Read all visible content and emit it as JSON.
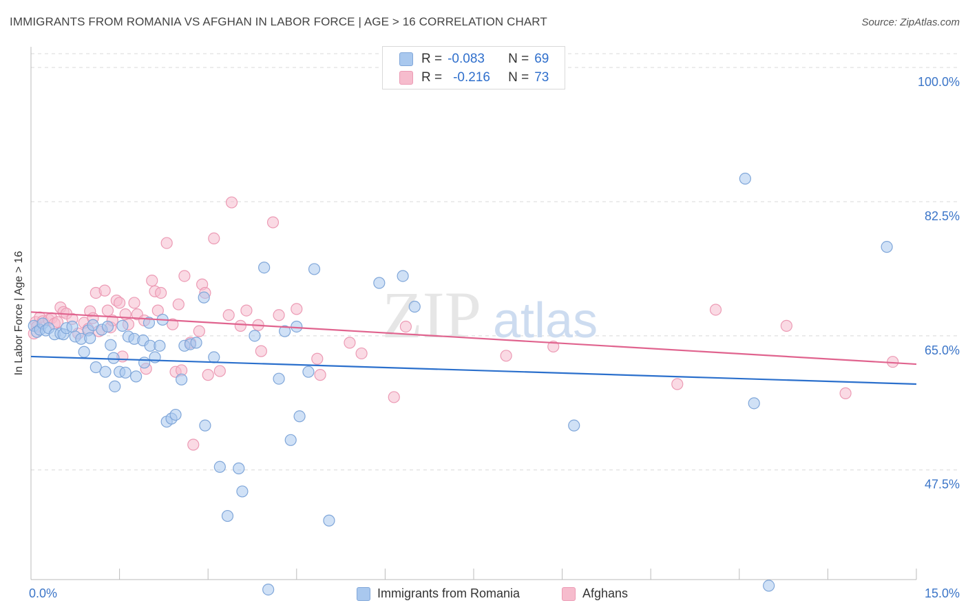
{
  "title": "IMMIGRANTS FROM ROMANIA VS AFGHAN IN LABOR FORCE | AGE > 16 CORRELATION CHART",
  "source": "Source: ZipAtlas.com",
  "watermark": {
    "zip": "ZIP",
    "atlas": "atlas"
  },
  "stats": {
    "romania": {
      "r_label": "R =",
      "r_value": "-0.083",
      "n_label": "N =",
      "n_value": "69"
    },
    "afghan": {
      "r_label": "R =",
      "r_value": "-0.216",
      "n_label": "N =",
      "n_value": "73"
    }
  },
  "legend": {
    "romania": "Immigrants from Romania",
    "afghan": "Afghans"
  },
  "x_tick_labels": {
    "min": "0.0%",
    "max": "15.0%"
  },
  "colors": {
    "romania_fill": "#a9c8ee",
    "romania_stroke": "#7fa6d9",
    "romania_line": "#2a6fcc",
    "afghan_fill": "#f6bccd",
    "afghan_stroke": "#ec9ab4",
    "afghan_line": "#e0638e",
    "tick_label": "#3b75c8",
    "grid": "#d8d8d8"
  },
  "chart_data": {
    "type": "scatter",
    "title": "IMMIGRANTS FROM ROMANIA VS AFGHAN IN LABOR FORCE | AGE > 16 CORRELATION CHART",
    "xlabel": "",
    "ylabel": "In Labor Force | Age > 16",
    "xlim": [
      0,
      15
    ],
    "ylim": [
      33.2,
      101.8
    ],
    "y_ticks": [
      47.5,
      65.0,
      82.5,
      100.0
    ],
    "y_tick_labels": [
      "47.5%",
      "65.0%",
      "82.5%",
      "100.0%"
    ],
    "grid": true,
    "series": [
      {
        "name": "Immigrants from Romania",
        "r": -0.083,
        "n": 69,
        "trend": {
          "x": [
            0,
            15
          ],
          "y": [
            62.3,
            58.7
          ]
        },
        "points": [
          [
            0.05,
            66.3
          ],
          [
            0.1,
            65.5
          ],
          [
            0.15,
            65.8
          ],
          [
            0.2,
            66.6
          ],
          [
            0.25,
            65.7
          ],
          [
            0.3,
            66.0
          ],
          [
            0.4,
            65.2
          ],
          [
            0.5,
            65.3
          ],
          [
            0.55,
            65.2
          ],
          [
            0.6,
            66.0
          ],
          [
            0.7,
            66.2
          ],
          [
            0.75,
            64.9
          ],
          [
            0.85,
            64.6
          ],
          [
            0.9,
            62.9
          ],
          [
            0.97,
            65.7
          ],
          [
            1.0,
            64.7
          ],
          [
            1.05,
            66.4
          ],
          [
            1.1,
            60.9
          ],
          [
            1.2,
            65.8
          ],
          [
            1.26,
            60.3
          ],
          [
            1.3,
            66.2
          ],
          [
            1.35,
            63.8
          ],
          [
            1.4,
            62.1
          ],
          [
            1.42,
            58.4
          ],
          [
            1.5,
            60.3
          ],
          [
            1.55,
            66.3
          ],
          [
            1.6,
            60.2
          ],
          [
            1.65,
            64.9
          ],
          [
            1.75,
            64.6
          ],
          [
            1.78,
            59.7
          ],
          [
            1.9,
            64.4
          ],
          [
            1.92,
            61.5
          ],
          [
            2.0,
            66.7
          ],
          [
            2.02,
            63.7
          ],
          [
            2.1,
            62.2
          ],
          [
            2.18,
            63.7
          ],
          [
            2.23,
            67.1
          ],
          [
            2.3,
            53.8
          ],
          [
            2.38,
            54.2
          ],
          [
            2.45,
            54.7
          ],
          [
            2.55,
            59.3
          ],
          [
            2.6,
            63.7
          ],
          [
            2.7,
            63.9
          ],
          [
            2.8,
            64.1
          ],
          [
            2.93,
            70.0
          ],
          [
            2.95,
            53.3
          ],
          [
            3.1,
            62.2
          ],
          [
            3.2,
            47.9
          ],
          [
            3.33,
            41.5
          ],
          [
            3.52,
            47.7
          ],
          [
            3.58,
            44.7
          ],
          [
            3.79,
            65.0
          ],
          [
            3.95,
            73.9
          ],
          [
            4.02,
            31.9
          ],
          [
            4.2,
            59.4
          ],
          [
            4.3,
            65.6
          ],
          [
            4.4,
            51.4
          ],
          [
            4.5,
            66.2
          ],
          [
            4.55,
            54.5
          ],
          [
            4.7,
            60.3
          ],
          [
            4.8,
            73.7
          ],
          [
            5.05,
            40.9
          ],
          [
            5.9,
            71.9
          ],
          [
            6.3,
            72.8
          ],
          [
            6.5,
            68.8
          ],
          [
            9.2,
            53.3
          ],
          [
            12.1,
            85.5
          ],
          [
            12.25,
            56.2
          ],
          [
            12.5,
            32.4
          ],
          [
            14.5,
            76.6
          ]
        ]
      },
      {
        "name": "Afghans",
        "r": -0.216,
        "n": 73,
        "trend": {
          "x": [
            0,
            15
          ],
          "y": [
            68.1,
            61.3
          ]
        },
        "points": [
          [
            0.05,
            65.3
          ],
          [
            0.08,
            66.8
          ],
          [
            0.1,
            66.2
          ],
          [
            0.15,
            67.4
          ],
          [
            0.2,
            66.9
          ],
          [
            0.3,
            67.1
          ],
          [
            0.35,
            67.3
          ],
          [
            0.4,
            66.6
          ],
          [
            0.45,
            66.8
          ],
          [
            0.5,
            68.7
          ],
          [
            0.55,
            68.1
          ],
          [
            0.6,
            67.9
          ],
          [
            0.7,
            67.2
          ],
          [
            0.8,
            65.3
          ],
          [
            0.9,
            66.7
          ],
          [
            0.97,
            65.9
          ],
          [
            1.0,
            68.2
          ],
          [
            1.05,
            67.3
          ],
          [
            1.1,
            70.6
          ],
          [
            1.15,
            65.6
          ],
          [
            1.25,
            70.9
          ],
          [
            1.3,
            68.3
          ],
          [
            1.35,
            66.1
          ],
          [
            1.38,
            67.0
          ],
          [
            1.45,
            69.6
          ],
          [
            1.5,
            69.3
          ],
          [
            1.55,
            62.3
          ],
          [
            1.6,
            67.8
          ],
          [
            1.65,
            66.5
          ],
          [
            1.75,
            69.3
          ],
          [
            1.8,
            67.8
          ],
          [
            1.92,
            67.0
          ],
          [
            1.95,
            60.7
          ],
          [
            2.05,
            72.2
          ],
          [
            2.1,
            70.8
          ],
          [
            2.15,
            68.3
          ],
          [
            2.2,
            70.6
          ],
          [
            2.3,
            77.1
          ],
          [
            2.4,
            66.5
          ],
          [
            2.45,
            60.3
          ],
          [
            2.5,
            69.1
          ],
          [
            2.55,
            60.5
          ],
          [
            2.6,
            72.8
          ],
          [
            2.7,
            64.1
          ],
          [
            2.75,
            50.8
          ],
          [
            2.85,
            65.6
          ],
          [
            2.9,
            71.7
          ],
          [
            2.95,
            70.6
          ],
          [
            3.0,
            59.9
          ],
          [
            3.1,
            77.7
          ],
          [
            3.2,
            60.4
          ],
          [
            3.35,
            67.7
          ],
          [
            3.4,
            82.4
          ],
          [
            3.55,
            66.3
          ],
          [
            3.65,
            68.3
          ],
          [
            3.85,
            66.4
          ],
          [
            3.9,
            63.0
          ],
          [
            4.1,
            79.8
          ],
          [
            4.2,
            67.7
          ],
          [
            4.5,
            68.5
          ],
          [
            4.85,
            62.0
          ],
          [
            4.9,
            59.9
          ],
          [
            5.4,
            64.1
          ],
          [
            5.6,
            62.7
          ],
          [
            6.15,
            57.0
          ],
          [
            6.35,
            66.2
          ],
          [
            8.05,
            62.4
          ],
          [
            8.85,
            63.6
          ],
          [
            10.95,
            58.7
          ],
          [
            11.6,
            68.4
          ],
          [
            12.8,
            66.3
          ],
          [
            13.8,
            57.5
          ],
          [
            14.6,
            61.6
          ]
        ]
      }
    ]
  }
}
